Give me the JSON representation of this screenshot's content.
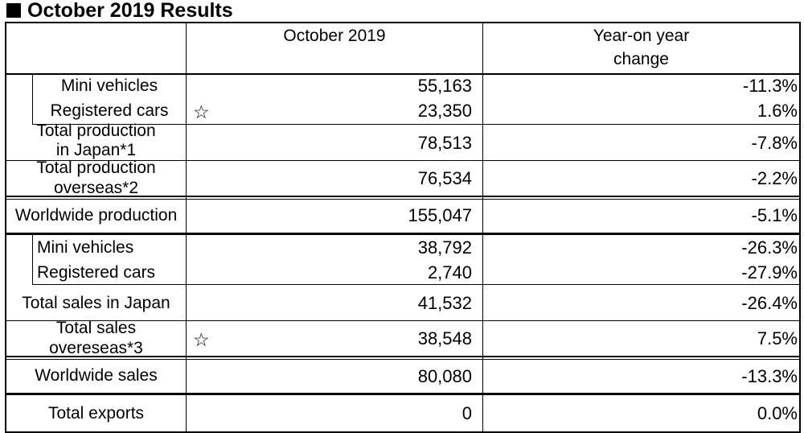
{
  "title": "October 2019 Results",
  "header": {
    "period": "October 2019",
    "change_line1": "Year-on year",
    "change_line2": "change"
  },
  "rows": [
    {
      "label": "Mini vehicles",
      "value": "55,163",
      "change": "-11.3%"
    },
    {
      "label": "Registered cars",
      "value": "23,350",
      "change": "1.6%",
      "star": "☆"
    },
    {
      "label_line1": "Total production",
      "label_line2": "in Japan*1",
      "value": "78,513",
      "change": "-7.8%"
    },
    {
      "label_line1": "Total production",
      "label_line2": "overseas*2",
      "value": "76,534",
      "change": "-2.2%"
    },
    {
      "label": "Worldwide production",
      "value": "155,047",
      "change": "-5.1%"
    },
    {
      "label": "Mini vehicles",
      "value": "38,792",
      "change": "-26.3%"
    },
    {
      "label": "Registered cars",
      "value": "2,740",
      "change": "-27.9%"
    },
    {
      "label": "Total sales in Japan",
      "value": "41,532",
      "change": "-26.4%"
    },
    {
      "label_line1": "Total sales",
      "label_line2": "overeseas*3",
      "value": "38,548",
      "change": "7.5%",
      "star": "☆"
    },
    {
      "label": "Worldwide sales",
      "value": "80,080",
      "change": "-13.3%"
    },
    {
      "label": "Total exports",
      "value": "0",
      "change": "0.0%"
    }
  ]
}
